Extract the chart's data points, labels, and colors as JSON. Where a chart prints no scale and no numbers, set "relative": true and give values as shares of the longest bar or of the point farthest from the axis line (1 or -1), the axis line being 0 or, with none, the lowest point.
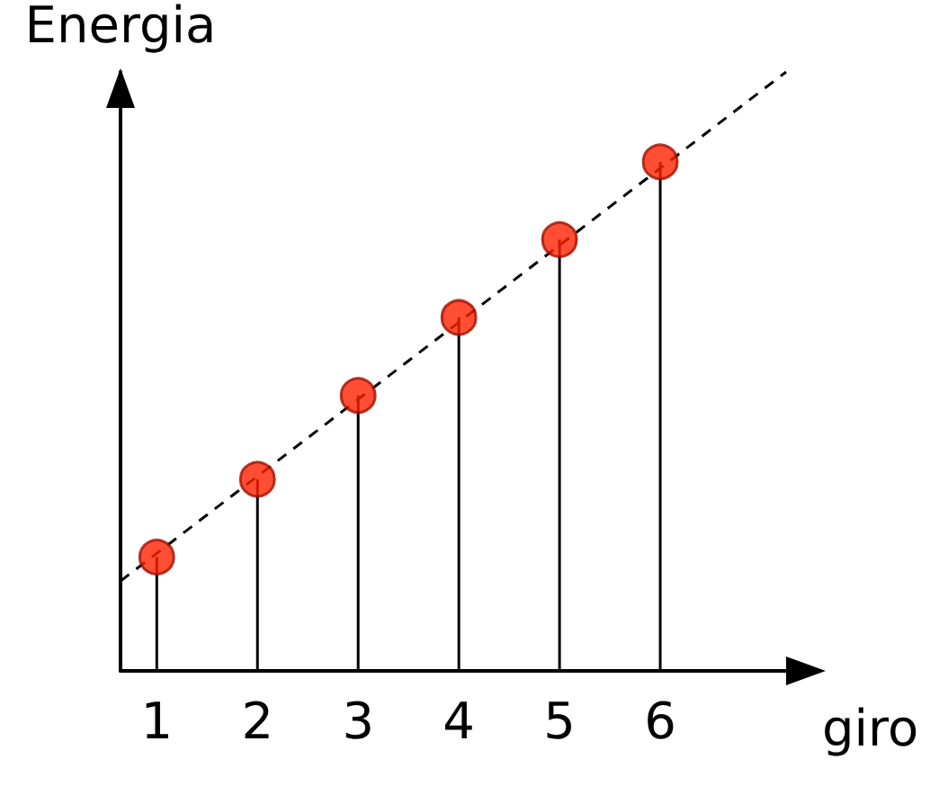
{
  "chart_data": {
    "type": "lollipop",
    "relative": true,
    "xlabel": "giro",
    "ylabel": "Energia",
    "x": [
      1,
      2,
      3,
      4,
      5,
      6
    ],
    "xlim": [
      0.64,
      7.25
    ],
    "xticks": [
      1,
      2,
      3,
      4,
      5,
      6
    ],
    "tick_labels": "x",
    "grid": false,
    "marker": "circle",
    "series": [
      {
        "color": "#ff2200",
        "values": [
          0.19,
          0.32,
          0.46,
          0.59,
          0.72,
          0.85
        ]
      },
      {
        "type": "line",
        "color": "#000000",
        "line_style": "dashed",
        "marker": "none",
        "x": [
          0.64,
          7.25
        ],
        "values": [
          0.15,
          1
        ]
      }
    ]
  }
}
